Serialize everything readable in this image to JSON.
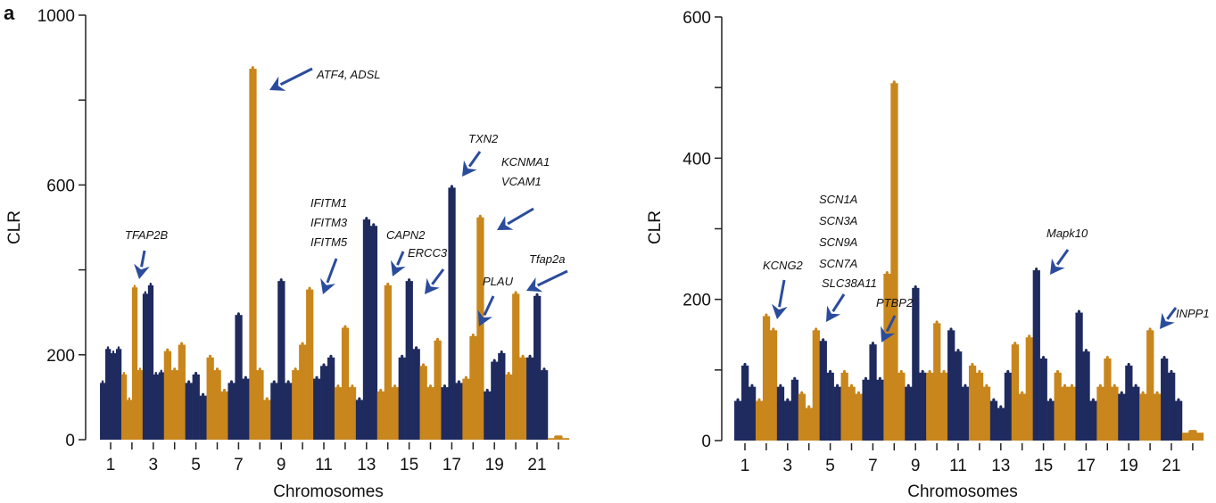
{
  "panel_letter": "a",
  "colors": {
    "navy": "#1f2a5e",
    "orange": "#c8861c",
    "arrow": "#2b4c9c",
    "axis": "#222222"
  },
  "chart_data": [
    {
      "type": "scatter",
      "subtype": "manhattan",
      "xlabel": "Chromosomes",
      "ylabel": "CLR",
      "ylim": [
        0,
        1000
      ],
      "yticks": [
        0,
        200,
        400,
        600,
        800,
        1000
      ],
      "ytick_labels": [
        "0",
        "200",
        "",
        "600",
        "",
        "1000"
      ],
      "xtick_labels": [
        "1",
        "",
        "3",
        "",
        "5",
        "",
        "7",
        "",
        "9",
        "",
        "11",
        "",
        "13",
        "",
        "15",
        "",
        "17",
        "",
        "19",
        "",
        "21",
        ""
      ],
      "chromosome_max_clr": [
        [
          140,
          220,
          210,
          220
        ],
        [
          160,
          100,
          365,
          170
        ],
        [
          350,
          370,
          160,
          165
        ],
        [
          215,
          170,
          230
        ],
        [
          140,
          160,
          110
        ],
        [
          200,
          170,
          120
        ],
        [
          140,
          300,
          150
        ],
        [
          880,
          170,
          100
        ],
        [
          140,
          380,
          140
        ],
        [
          170,
          230,
          360
        ],
        [
          150,
          180,
          200
        ],
        [
          130,
          270,
          130
        ],
        [
          100,
          525,
          510
        ],
        [
          120,
          370,
          130
        ],
        [
          200,
          380,
          220
        ],
        [
          180,
          130,
          240
        ],
        [
          130,
          600,
          140
        ],
        [
          150,
          250,
          530
        ],
        [
          120,
          190,
          210
        ],
        [
          160,
          350,
          200
        ],
        [
          200,
          345,
          170
        ],
        [
          10
        ]
      ],
      "annotations": [
        "ATF4, ADSL",
        "TXN2",
        "KCNMA1",
        "VCAM1",
        "IFITM1",
        "IFITM3",
        "IFITM5",
        "TFAP2B",
        "CAPN2",
        "ERCC3",
        "PLAU",
        "Tfap2a"
      ]
    },
    {
      "type": "scatter",
      "subtype": "manhattan",
      "xlabel": "Chromosomes",
      "ylabel": "CLR",
      "ylim": [
        0,
        600
      ],
      "yticks": [
        0,
        100,
        200,
        300,
        400,
        500,
        600
      ],
      "ytick_labels": [
        "0",
        "",
        "200",
        "",
        "400",
        "",
        "600"
      ],
      "xtick_labels": [
        "1",
        "",
        "3",
        "",
        "5",
        "",
        "7",
        "",
        "9",
        "",
        "11",
        "",
        "13",
        "",
        "15",
        "",
        "17",
        "",
        "19",
        "",
        "21",
        ""
      ],
      "chromosome_max_clr": [
        [
          60,
          110,
          80
        ],
        [
          60,
          180,
          160
        ],
        [
          80,
          60,
          90
        ],
        [
          70,
          50,
          160
        ],
        [
          145,
          100,
          80
        ],
        [
          100,
          80,
          70
        ],
        [
          90,
          140,
          90
        ],
        [
          240,
          510,
          100
        ],
        [
          80,
          220,
          100
        ],
        [
          100,
          170,
          100
        ],
        [
          160,
          130,
          80
        ],
        [
          110,
          100,
          80
        ],
        [
          60,
          50,
          100
        ],
        [
          140,
          70,
          150
        ],
        [
          245,
          120,
          60
        ],
        [
          100,
          80,
          80
        ],
        [
          185,
          130,
          60
        ],
        [
          80,
          120,
          80
        ],
        [
          70,
          110,
          80
        ],
        [
          70,
          160,
          70
        ],
        [
          120,
          100,
          60
        ],
        [
          15
        ]
      ],
      "annotations": [
        "SCN1A",
        "SCN3A",
        "SCN9A",
        "SCN7A",
        "SLC38A11",
        "KCNG2",
        "PTBP2",
        "Mapk10",
        "INPP1"
      ]
    }
  ]
}
